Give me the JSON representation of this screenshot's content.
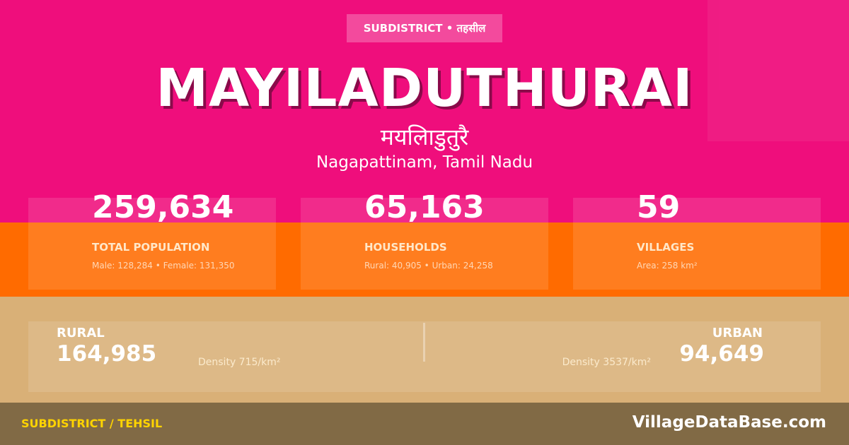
{
  "colors": {
    "top": "#ef0e7c",
    "middle": "#ff6b00",
    "lower": "#d9b077",
    "footer": "#816a45",
    "footer_label": "#ffd400"
  },
  "badge": "SUBDISTRICT • तहसील",
  "title": "MAYILADUTHURAI",
  "title_hindi": "मयलिाडुतुरै",
  "location": "Nagapattinam, Tamil Nadu",
  "stats": [
    {
      "value": "259,634",
      "label": "TOTAL POPULATION",
      "sub": "Male: 128,284 • Female: 131,350"
    },
    {
      "value": "65,163",
      "label": "HOUSEHOLDS",
      "sub": "Rural: 40,905 • Urban: 24,258"
    },
    {
      "value": "59",
      "label": "VILLAGES",
      "sub": "Area: 258 km²"
    }
  ],
  "rural": {
    "label": "RURAL",
    "value": "164,985",
    "density": "Density 715/km²"
  },
  "urban": {
    "label": "URBAN",
    "value": "94,649",
    "density": "Density 3537/km²"
  },
  "footer": {
    "left": "SUBDISTRICT / TEHSIL",
    "right": "VillageDataBase.com"
  }
}
